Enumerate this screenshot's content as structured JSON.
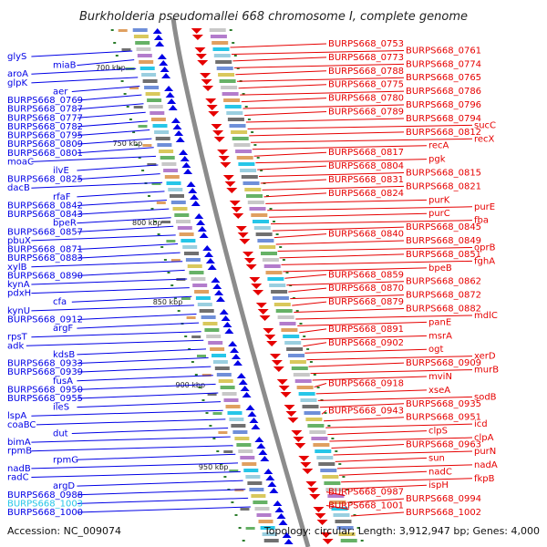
{
  "title": "Burkholderia pseudomallei 668 chromosome I, complete genome",
  "accession": "Accession: NC_009074",
  "summary": "Topology: circular; Length: 3,912,947 bp; Genes: 4,000",
  "colors": {
    "forward": "#e60000",
    "reverse": "#0000e6",
    "highlight": "#26c6e8",
    "backbone": "#8c8c8c",
    "tick": "#2d7d2d"
  },
  "kbp_ticks": [
    "700 kbp",
    "750 kbp",
    "800 kbp",
    "850 kbp",
    "900 kbp",
    "950 kbp"
  ],
  "left_labels": [
    "glyS",
    "miaB",
    "aroA",
    "glpK",
    "aer",
    "BURPS668_0769",
    "BURPS668_0787",
    "BURPS668_0777",
    "BURPS668_0782",
    "BURPS668_0795",
    "BURPS668_0809",
    "BURPS668_0801",
    "moaC",
    "ilvE",
    "BURPS668_0825",
    "dacB",
    "rfaF",
    "BURPS668_0842",
    "BURPS668_0843",
    "bpeR",
    "BURPS668_0857",
    "pbuX",
    "BURPS668_0871",
    "BURPS668_0883",
    "xylB",
    "BURPS668_0890",
    "kynA",
    "pdxH",
    "cfa",
    "kynU",
    "BURPS668_0912",
    "argF",
    "rpsT",
    "adk",
    "kdsB",
    "BURPS668_0933",
    "BURPS668_0939",
    "fusA",
    "BURPS668_0950",
    "BURPS668_0955",
    "ileS",
    "lspA",
    "coaBC",
    "dut",
    "bimA",
    "rpmB",
    "rpmG",
    "nadB",
    "radC",
    "argD",
    "BURPS668_0988",
    "BURPS668_1003",
    "BURPS668_1000"
  ],
  "right_labels": [
    "BURPS668_0753",
    "BURPS668_0761",
    "BURPS668_0773",
    "BURPS668_0774",
    "BURPS668_0788",
    "BURPS668_0765",
    "BURPS668_0775",
    "BURPS668_0786",
    "BURPS668_0780",
    "BURPS668_0796",
    "BURPS668_0789",
    "BURPS668_0794",
    "sucC",
    "BURPS668_0812",
    "recX",
    "recA",
    "BURPS668_0817",
    "pgk",
    "BURPS668_0804",
    "BURPS668_0815",
    "BURPS668_0831",
    "BURPS668_0821",
    "BURPS668_0824",
    "purK",
    "purE",
    "purC",
    "fba",
    "BURPS668_0845",
    "BURPS668_0840",
    "BURPS668_0849",
    "oprB",
    "BURPS668_0851",
    "fghA",
    "bpeB",
    "BURPS668_0859",
    "BURPS668_0862",
    "BURPS668_0870",
    "BURPS668_0872",
    "BURPS668_0879",
    "BURPS668_0882",
    "mdlC",
    "panE",
    "BURPS668_0891",
    "msrA",
    "BURPS668_0902",
    "ogt",
    "xerD",
    "BURPS668_0909",
    "murB",
    "mviN",
    "BURPS668_0918",
    "xseA",
    "sodB",
    "BURPS668_0935",
    "BURPS668_0943",
    "BURPS668_0951",
    "icd",
    "clpS",
    "clpA",
    "BURPS668_0963",
    "purN",
    "sun",
    "nadA",
    "nadC",
    "fkpB",
    "ispH",
    "BURPS668_0987",
    "BURPS668_0994",
    "BURPS668_1001",
    "BURPS668_1002"
  ]
}
